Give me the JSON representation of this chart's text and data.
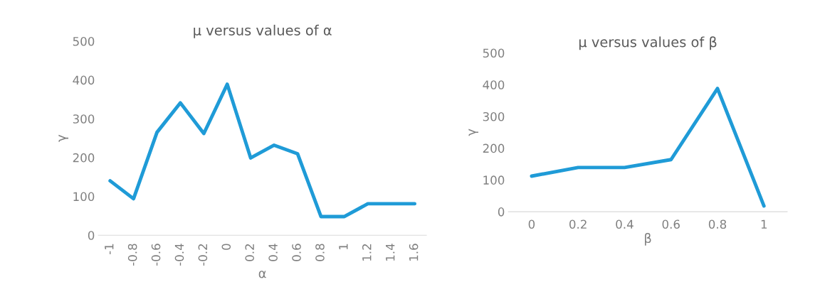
{
  "chart_data": [
    {
      "type": "line",
      "title": "µ versus values of α",
      "xlabel": "α",
      "ylabel": "γ",
      "categories": [
        "-1",
        "-0.8",
        "-0.6",
        "-0.4",
        "-0.2",
        "0",
        "0.2",
        "0.4",
        "0.6",
        "0.8",
        "1",
        "1.2",
        "1.4",
        "1.6"
      ],
      "series": [
        {
          "color": "#1f9bd7",
          "values": [
            140,
            94,
            265,
            341,
            262,
            389,
            199,
            232,
            210,
            48,
            48,
            81,
            81,
            81
          ]
        }
      ],
      "ylim": [
        0,
        500
      ],
      "yticks": [
        0,
        100,
        200,
        300,
        400,
        500
      ],
      "grid": false
    },
    {
      "type": "line",
      "title": "µ versus values of β",
      "xlabel": "β",
      "ylabel": "γ",
      "categories": [
        "0",
        "0.2",
        "0.4",
        "0.6",
        "0.8",
        "1"
      ],
      "series": [
        {
          "color": "#1f9bd7",
          "values": [
            112,
            139,
            139,
            164,
            388,
            18
          ]
        }
      ],
      "ylim": [
        0,
        500
      ],
      "yticks": [
        0,
        100,
        200,
        300,
        400,
        500
      ],
      "grid": false
    }
  ]
}
